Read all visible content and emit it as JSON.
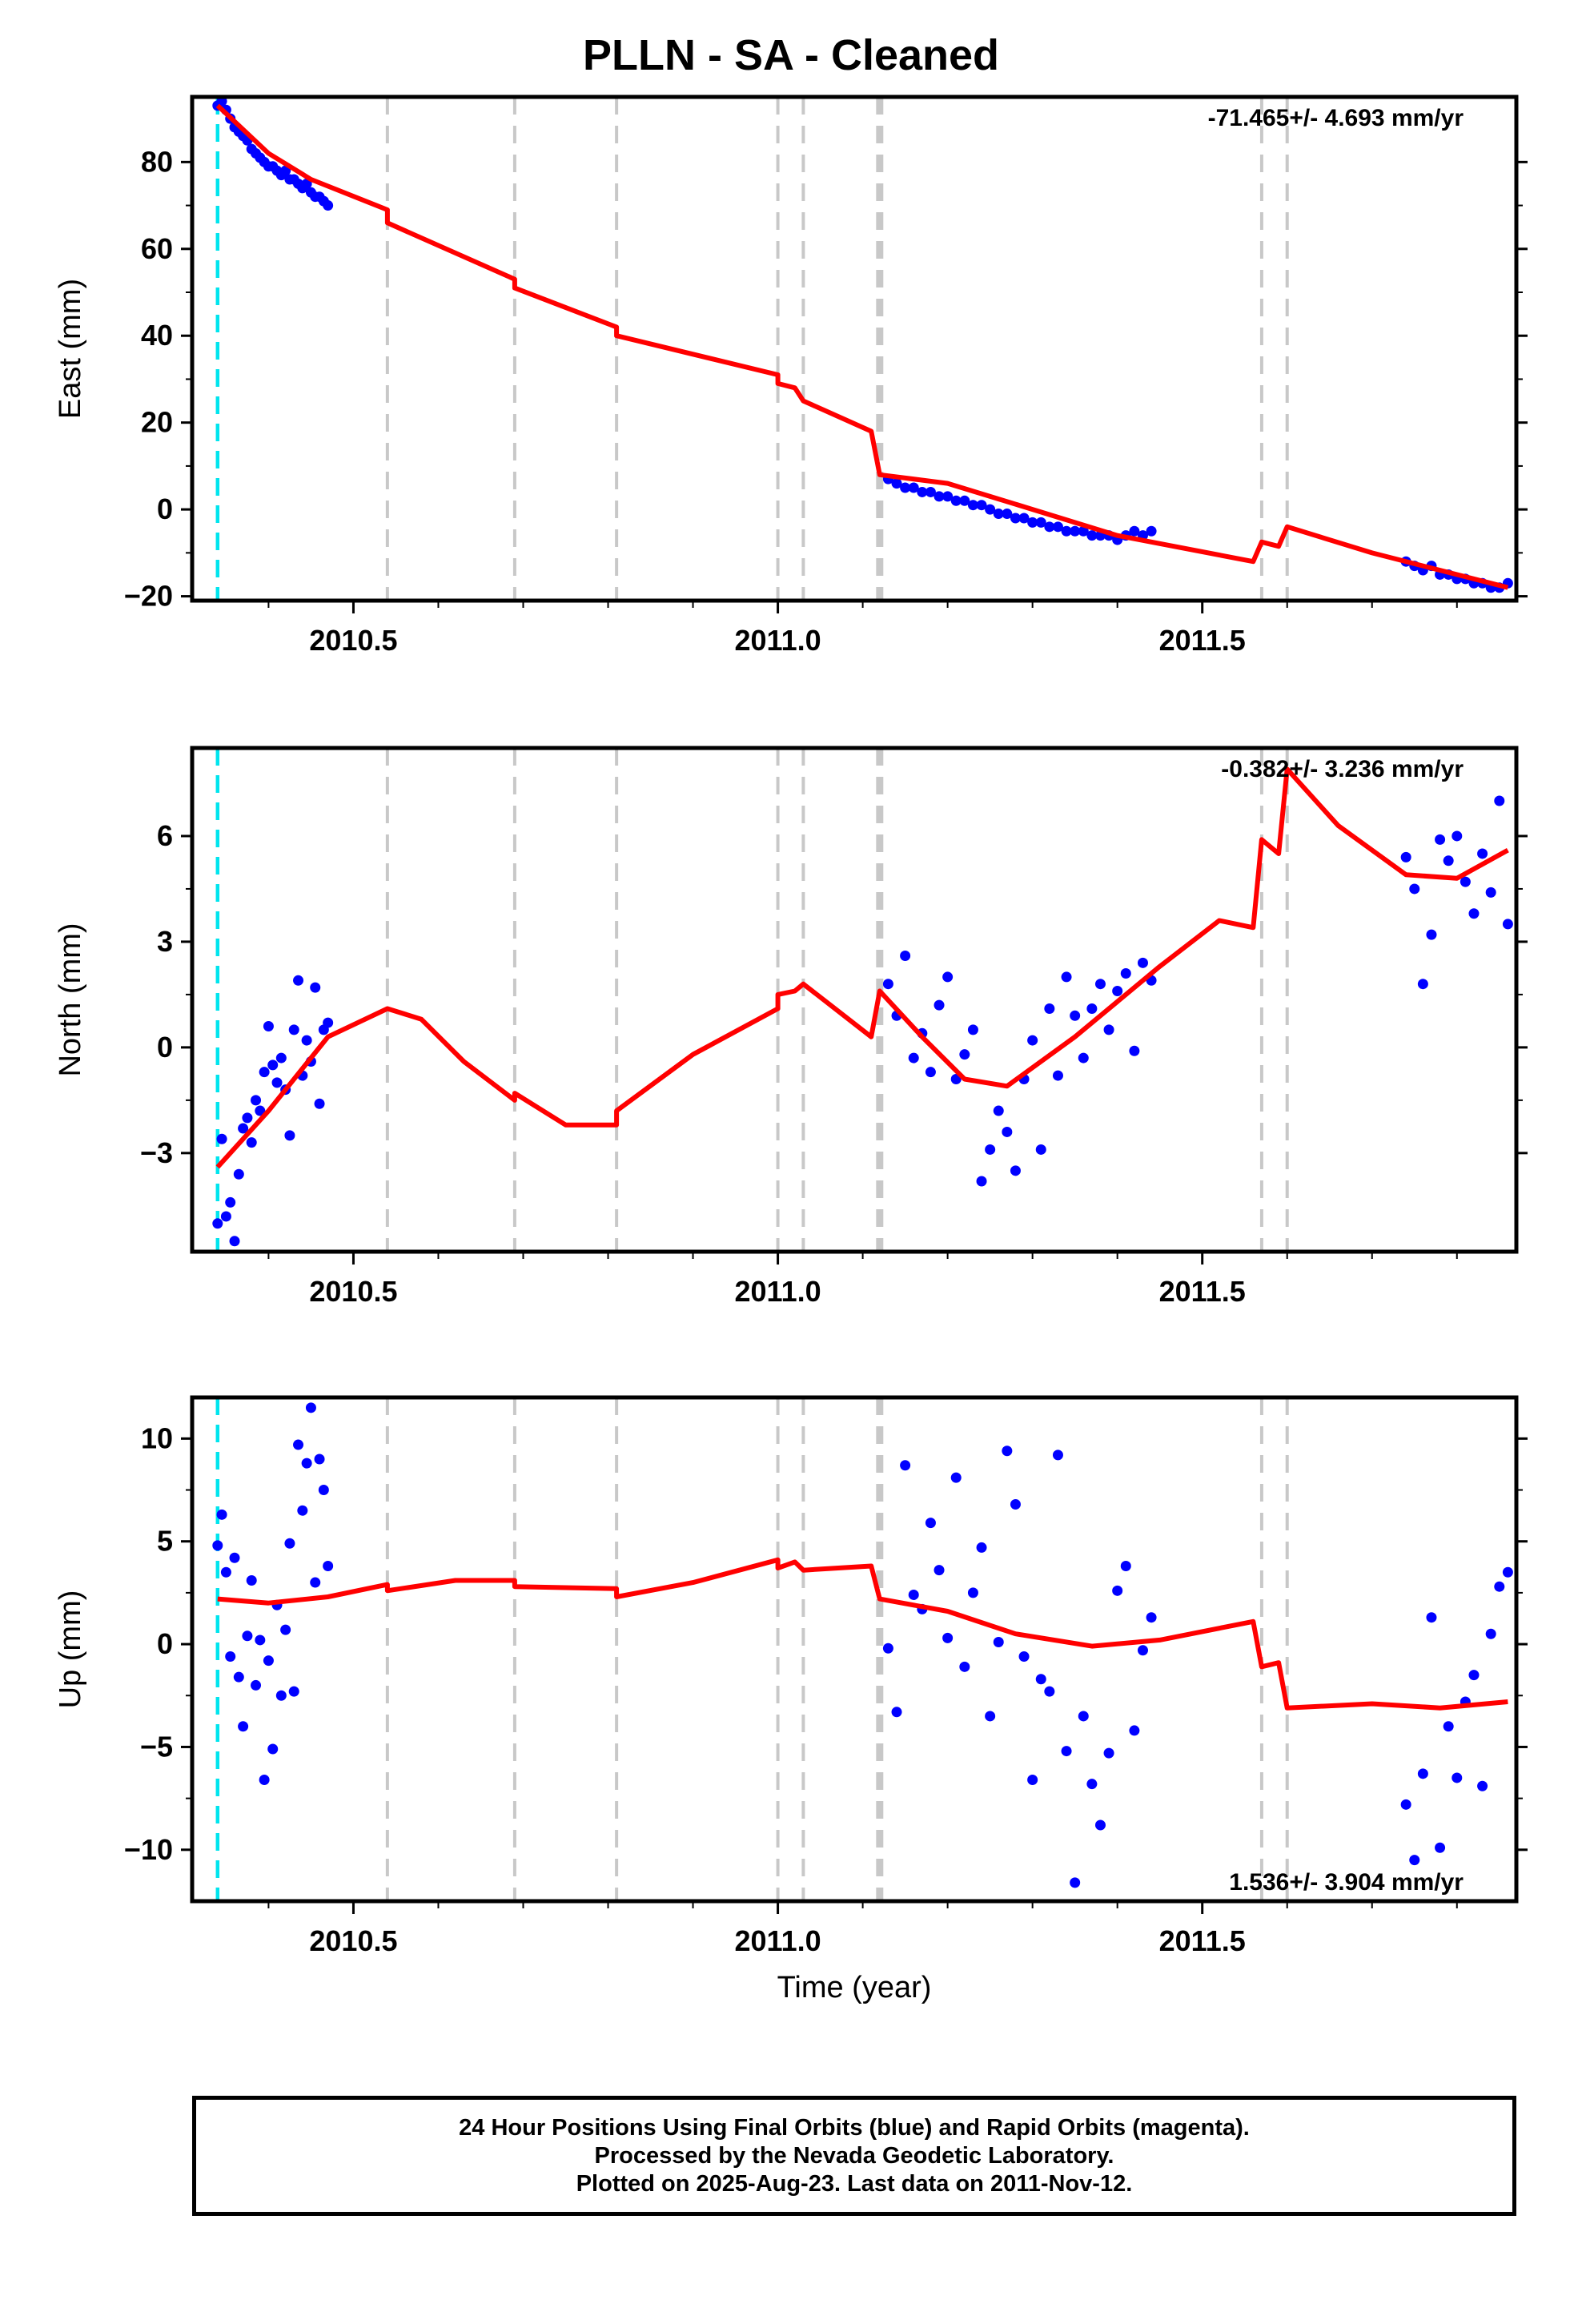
{
  "title": "PLLN  - SA - Cleaned",
  "x_axis_title": "Time (year)",
  "footer": {
    "line1": "24 Hour Positions Using Final Orbits (blue) and Rapid Orbits (magenta).",
    "line2": "Processed by the Nevada Geodetic Laboratory.",
    "line3": "Plotted on 2025-Aug-23. Last data on 2011-Nov-12."
  },
  "colors": {
    "data_points": "#0000ff",
    "model_line": "#ff0000",
    "start_line": "#00e5ee",
    "event_lines": "#c8c8c8"
  },
  "chart_data": [
    {
      "type": "scatter",
      "ylabel": "East (mm)",
      "rate_label": "-71.465+/- 4.693 mm/yr",
      "xlim": [
        2010.31,
        2011.87
      ],
      "ylim": [
        -21,
        95
      ],
      "x_ticks": [
        "2010.5",
        "2011.0",
        "2011.5"
      ],
      "y_ticks": [
        -20,
        0,
        20,
        40,
        60,
        80
      ],
      "grid": false,
      "start_line_x": 2010.34,
      "event_lines_x": [
        2010.54,
        2010.69,
        2010.81,
        2011.0,
        2011.03,
        2011.12,
        2011.57,
        2011.6
      ],
      "series": [
        {
          "kind": "points",
          "x": [
            2010.34,
            2010.345,
            2010.35,
            2010.355,
            2010.36,
            2010.365,
            2010.37,
            2010.375,
            2010.38,
            2010.385,
            2010.39,
            2010.395,
            2010.4,
            2010.405,
            2010.41,
            2010.415,
            2010.42,
            2010.425,
            2010.43,
            2010.435,
            2010.44,
            2010.445,
            2010.45,
            2010.455,
            2010.46,
            2010.465,
            2010.47,
            2011.13,
            2011.14,
            2011.15,
            2011.16,
            2011.17,
            2011.18,
            2011.19,
            2011.2,
            2011.21,
            2011.22,
            2011.23,
            2011.24,
            2011.25,
            2011.26,
            2011.27,
            2011.28,
            2011.29,
            2011.3,
            2011.31,
            2011.32,
            2011.33,
            2011.34,
            2011.35,
            2011.36,
            2011.37,
            2011.38,
            2011.39,
            2011.4,
            2011.41,
            2011.42,
            2011.43,
            2011.44,
            2011.74,
            2011.75,
            2011.76,
            2011.77,
            2011.78,
            2011.79,
            2011.8,
            2011.81,
            2011.82,
            2011.83,
            2011.84,
            2011.85,
            2011.86
          ],
          "y": [
            93,
            94,
            92,
            90,
            88,
            87,
            86,
            85,
            83,
            82,
            81,
            80,
            79,
            79,
            78,
            77,
            78,
            76,
            76,
            75,
            74,
            75,
            73,
            72,
            72,
            71,
            70,
            7,
            6,
            5,
            5,
            4,
            4,
            3,
            3,
            2,
            2,
            1,
            1,
            0,
            -1,
            -1,
            -2,
            -2,
            -3,
            -3,
            -4,
            -4,
            -5,
            -5,
            -5,
            -6,
            -6,
            -6,
            -7,
            -6,
            -5,
            -6,
            -5,
            -12,
            -13,
            -14,
            -13,
            -15,
            -15,
            -16,
            -16,
            -17,
            -17,
            -18,
            -18,
            -17
          ]
        },
        {
          "kind": "model",
          "x": [
            2010.34,
            2010.4,
            2010.45,
            2010.54,
            2010.54,
            2010.69,
            2010.69,
            2010.81,
            2010.81,
            2011.0,
            2011.0,
            2011.02,
            2011.03,
            2011.11,
            2011.12,
            2011.2,
            2011.3,
            2011.4,
            2011.56,
            2011.57,
            2011.59,
            2011.6,
            2011.7,
            2011.86
          ],
          "y": [
            93,
            82,
            76,
            69,
            66,
            53,
            51,
            42,
            40,
            31,
            29,
            28,
            25,
            18,
            8,
            6,
            0,
            -6,
            -12,
            -7.5,
            -8.5,
            -4,
            -10,
            -18
          ]
        }
      ]
    },
    {
      "type": "scatter",
      "ylabel": "North (mm)",
      "rate_label": "-0.382+/- 3.236 mm/yr",
      "xlim": [
        2010.31,
        2011.87
      ],
      "ylim": [
        -5.8,
        8.5
      ],
      "x_ticks": [
        "2010.5",
        "2011.0",
        "2011.5"
      ],
      "y_ticks": [
        -3,
        0,
        3,
        6
      ],
      "grid": false,
      "start_line_x": 2010.34,
      "event_lines_x": [
        2010.54,
        2010.69,
        2010.81,
        2011.0,
        2011.03,
        2011.12,
        2011.57,
        2011.6
      ],
      "series": [
        {
          "kind": "points",
          "x": [
            2010.34,
            2010.345,
            2010.35,
            2010.355,
            2010.36,
            2010.365,
            2010.37,
            2010.375,
            2010.38,
            2010.385,
            2010.39,
            2010.395,
            2010.4,
            2010.405,
            2010.41,
            2010.415,
            2010.42,
            2010.425,
            2010.43,
            2010.435,
            2010.44,
            2010.445,
            2010.45,
            2010.455,
            2010.46,
            2010.465,
            2010.47,
            2011.13,
            2011.14,
            2011.15,
            2011.16,
            2011.17,
            2011.18,
            2011.19,
            2011.2,
            2011.21,
            2011.22,
            2011.23,
            2011.24,
            2011.25,
            2011.26,
            2011.27,
            2011.28,
            2011.29,
            2011.3,
            2011.31,
            2011.32,
            2011.33,
            2011.34,
            2011.35,
            2011.36,
            2011.37,
            2011.38,
            2011.39,
            2011.4,
            2011.41,
            2011.42,
            2011.43,
            2011.44,
            2011.74,
            2011.75,
            2011.76,
            2011.77,
            2011.78,
            2011.79,
            2011.8,
            2011.81,
            2011.82,
            2011.83,
            2011.84,
            2011.85,
            2011.86
          ],
          "y": [
            -5,
            -2.6,
            -4.8,
            -4.4,
            -5.5,
            -3.6,
            -2.3,
            -2.0,
            -2.7,
            -1.5,
            -1.8,
            -0.7,
            0.6,
            -0.5,
            -1.0,
            -0.3,
            -1.2,
            -2.5,
            0.5,
            1.9,
            -0.8,
            0.2,
            -0.4,
            1.7,
            -1.6,
            0.5,
            0.7,
            1.8,
            0.9,
            2.6,
            -0.3,
            0.4,
            -0.7,
            1.2,
            2.0,
            -0.9,
            -0.2,
            0.5,
            -3.8,
            -2.9,
            -1.8,
            -2.4,
            -3.5,
            -0.9,
            0.2,
            -2.9,
            1.1,
            -0.8,
            2.0,
            0.9,
            -0.3,
            1.1,
            1.8,
            0.5,
            1.6,
            2.1,
            -0.1,
            2.4,
            1.9,
            5.4,
            4.5,
            1.8,
            3.2,
            5.9,
            5.3,
            6.0,
            4.7,
            3.8,
            5.5,
            4.4,
            7.0,
            3.5
          ]
        },
        {
          "kind": "model",
          "x": [
            2010.34,
            2010.4,
            2010.47,
            2010.54,
            2010.58,
            2010.63,
            2010.69,
            2010.69,
            2010.75,
            2010.81,
            2010.81,
            2010.9,
            2011.0,
            2011.0,
            2011.02,
            2011.03,
            2011.11,
            2011.12,
            2011.17,
            2011.22,
            2011.27,
            2011.35,
            2011.45,
            2011.52,
            2011.56,
            2011.57,
            2011.59,
            2011.6,
            2011.66,
            2011.74,
            2011.8,
            2011.86
          ],
          "y": [
            -3.4,
            -1.8,
            0.3,
            1.1,
            0.8,
            -0.4,
            -1.5,
            -1.3,
            -2.2,
            -2.2,
            -1.8,
            -0.2,
            1.1,
            1.5,
            1.6,
            1.8,
            0.3,
            1.6,
            0.3,
            -0.9,
            -1.1,
            0.3,
            2.3,
            3.6,
            3.4,
            5.9,
            5.5,
            7.9,
            6.3,
            4.9,
            4.8,
            5.6
          ]
        }
      ]
    },
    {
      "type": "scatter",
      "ylabel": "Up (mm)",
      "xlabel": "Time (year)",
      "rate_label": "1.536+/- 3.904 mm/yr",
      "xlim": [
        2010.31,
        2011.87
      ],
      "ylim": [
        -12.5,
        12
      ],
      "x_ticks": [
        "2010.5",
        "2011.0",
        "2011.5"
      ],
      "y_ticks": [
        -10,
        -5,
        0,
        5,
        10
      ],
      "grid": false,
      "start_line_x": 2010.34,
      "event_lines_x": [
        2010.54,
        2010.69,
        2010.81,
        2011.0,
        2011.03,
        2011.12,
        2011.57,
        2011.6
      ],
      "series": [
        {
          "kind": "points",
          "x": [
            2010.34,
            2010.345,
            2010.35,
            2010.355,
            2010.36,
            2010.365,
            2010.37,
            2010.375,
            2010.38,
            2010.385,
            2010.39,
            2010.395,
            2010.4,
            2010.405,
            2010.41,
            2010.415,
            2010.42,
            2010.425,
            2010.43,
            2010.435,
            2010.44,
            2010.445,
            2010.45,
            2010.455,
            2010.46,
            2010.465,
            2010.47,
            2011.13,
            2011.14,
            2011.15,
            2011.16,
            2011.17,
            2011.18,
            2011.19,
            2011.2,
            2011.21,
            2011.22,
            2011.23,
            2011.24,
            2011.25,
            2011.26,
            2011.27,
            2011.28,
            2011.29,
            2011.3,
            2011.31,
            2011.32,
            2011.33,
            2011.34,
            2011.35,
            2011.36,
            2011.37,
            2011.38,
            2011.39,
            2011.4,
            2011.41,
            2011.42,
            2011.43,
            2011.44,
            2011.74,
            2011.75,
            2011.76,
            2011.77,
            2011.78,
            2011.79,
            2011.8,
            2011.81,
            2011.82,
            2011.83,
            2011.84,
            2011.85,
            2011.86
          ],
          "y": [
            4.8,
            6.3,
            3.5,
            -0.6,
            4.2,
            -1.6,
            -4.0,
            0.4,
            3.1,
            -2.0,
            0.2,
            -6.6,
            -0.8,
            -5.1,
            1.9,
            -2.5,
            0.7,
            4.9,
            -2.3,
            9.7,
            6.5,
            8.8,
            11.5,
            3.0,
            9.0,
            7.5,
            3.8,
            -0.2,
            -3.3,
            8.7,
            2.4,
            1.7,
            5.9,
            3.6,
            0.3,
            8.1,
            -1.1,
            2.5,
            4.7,
            -3.5,
            0.1,
            9.4,
            6.8,
            -0.6,
            -6.6,
            -1.7,
            -2.3,
            9.2,
            -5.2,
            -11.6,
            -3.5,
            -6.8,
            -8.8,
            -5.3,
            2.6,
            3.8,
            -4.2,
            -0.3,
            1.3,
            -7.8,
            -10.5,
            -6.3,
            1.3,
            -9.9,
            -4.0,
            -6.5,
            -2.8,
            -1.5,
            -6.9,
            0.5,
            2.8,
            3.5
          ]
        },
        {
          "kind": "model",
          "x": [
            2010.34,
            2010.4,
            2010.47,
            2010.54,
            2010.54,
            2010.62,
            2010.69,
            2010.69,
            2010.81,
            2010.81,
            2010.9,
            2011.0,
            2011.0,
            2011.02,
            2011.03,
            2011.11,
            2011.12,
            2011.2,
            2011.28,
            2011.37,
            2011.45,
            2011.56,
            2011.57,
            2011.59,
            2011.6,
            2011.7,
            2011.78,
            2011.86
          ],
          "y": [
            2.2,
            2.0,
            2.3,
            2.9,
            2.6,
            3.1,
            3.1,
            2.8,
            2.7,
            2.3,
            3.0,
            4.1,
            3.7,
            4.0,
            3.6,
            3.8,
            2.2,
            1.6,
            0.5,
            -0.1,
            0.2,
            1.1,
            -1.1,
            -0.9,
            -3.1,
            -2.9,
            -3.1,
            -2.8
          ]
        }
      ]
    }
  ]
}
